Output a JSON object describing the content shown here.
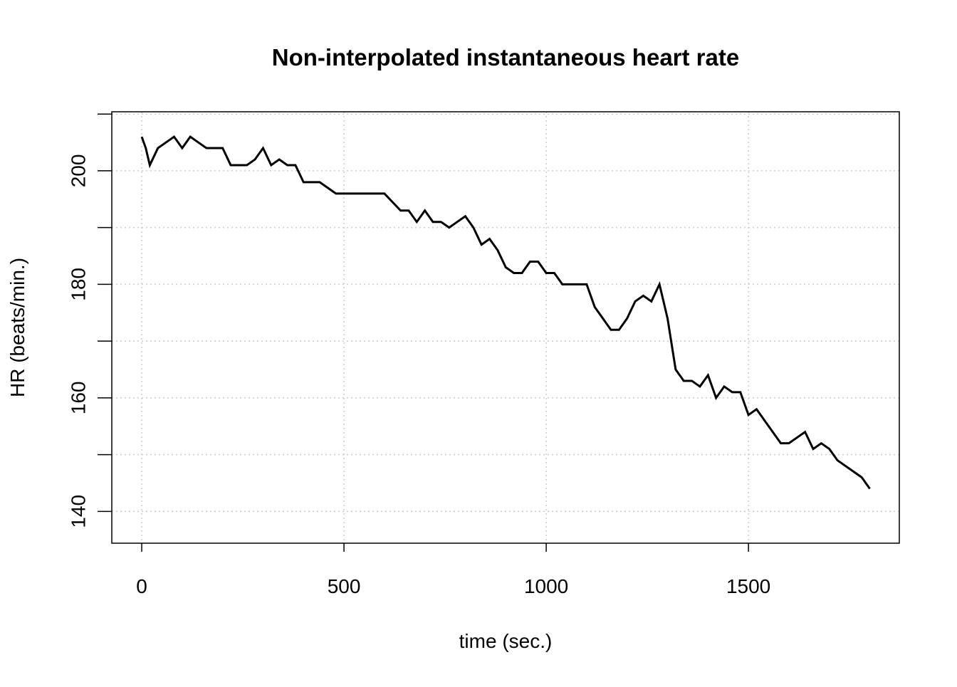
{
  "chart_data": {
    "type": "line",
    "title": "Non-interpolated instantaneous heart rate",
    "x_label": "time (sec.)",
    "y_label": "HR (beats/min.)",
    "x": [
      0,
      10,
      20,
      40,
      60,
      80,
      100,
      120,
      140,
      160,
      180,
      200,
      220,
      240,
      260,
      280,
      300,
      320,
      340,
      360,
      380,
      400,
      420,
      440,
      460,
      480,
      500,
      520,
      540,
      560,
      600,
      640,
      660,
      680,
      700,
      720,
      740,
      760,
      780,
      800,
      820,
      840,
      860,
      880,
      900,
      920,
      940,
      960,
      980,
      1000,
      1020,
      1040,
      1060,
      1080,
      1100,
      1120,
      1140,
      1160,
      1180,
      1200,
      1220,
      1240,
      1260,
      1280,
      1300,
      1320,
      1340,
      1360,
      1380,
      1400,
      1420,
      1440,
      1460,
      1480,
      1500,
      1520,
      1540,
      1560,
      1580,
      1600,
      1620,
      1640,
      1660,
      1680,
      1700,
      1720,
      1740,
      1760,
      1780,
      1800
    ],
    "series": [
      {
        "name": "HR",
        "color": "#000000",
        "values": [
          206,
          204,
          201,
          204,
          205,
          206,
          204,
          206,
          205,
          204,
          204,
          204,
          201,
          201,
          201,
          202,
          204,
          201,
          202,
          201,
          201,
          198,
          198,
          198,
          197,
          196,
          196,
          196,
          196,
          196,
          196,
          193,
          193,
          191,
          193,
          191,
          191,
          190,
          191,
          192,
          190,
          187,
          188,
          186,
          183,
          182,
          182,
          184,
          184,
          182,
          182,
          180,
          180,
          180,
          180,
          176,
          174,
          172,
          172,
          174,
          177,
          178,
          177,
          180,
          174,
          165,
          163,
          163,
          162,
          164,
          160,
          162,
          161,
          161,
          157,
          158,
          156,
          154,
          152,
          152,
          153,
          154,
          151,
          152,
          151,
          149,
          148,
          147,
          146,
          144
        ]
      }
    ],
    "xlim": [
      -74,
      1873
    ],
    "ylim": [
      134.4,
      210.4
    ],
    "xticks": [
      0,
      500,
      1000,
      1500
    ],
    "yticks": [
      140,
      160,
      180,
      200
    ],
    "minor_yticks": [
      150,
      170,
      190,
      210
    ],
    "grid": true
  }
}
